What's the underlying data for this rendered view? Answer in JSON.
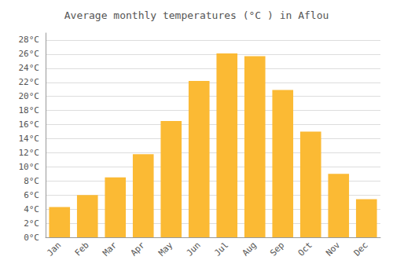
{
  "chart_data": {
    "type": "bar",
    "title": "Average monthly temperatures (°C ) in Aflou",
    "categories": [
      "Jan",
      "Feb",
      "Mar",
      "Apr",
      "May",
      "Jun",
      "Jul",
      "Aug",
      "Sep",
      "Oct",
      "Nov",
      "Dec"
    ],
    "values": [
      4.3,
      6.0,
      8.5,
      11.8,
      16.5,
      22.2,
      26.1,
      25.7,
      20.9,
      15.0,
      9.0,
      5.4
    ],
    "color": "#FBBA34",
    "ylim": [
      0,
      29
    ],
    "yticks": [
      {
        "value": 0,
        "label": "0°C"
      },
      {
        "value": 2,
        "label": "2°C"
      },
      {
        "value": 4,
        "label": "4°C"
      },
      {
        "value": 6,
        "label": "6°C"
      },
      {
        "value": 8,
        "label": "8°C"
      },
      {
        "value": 10,
        "label": "10°C"
      },
      {
        "value": 12,
        "label": "12°C"
      },
      {
        "value": 14,
        "label": "14°C"
      },
      {
        "value": 16,
        "label": "16°C"
      },
      {
        "value": 18,
        "label": "18°C"
      },
      {
        "value": 20,
        "label": "20°C"
      },
      {
        "value": 22,
        "label": "22°C"
      },
      {
        "value": 24,
        "label": "24°C"
      },
      {
        "value": 26,
        "label": "26°C"
      },
      {
        "value": 28,
        "label": "28°C"
      }
    ],
    "grid": true
  }
}
